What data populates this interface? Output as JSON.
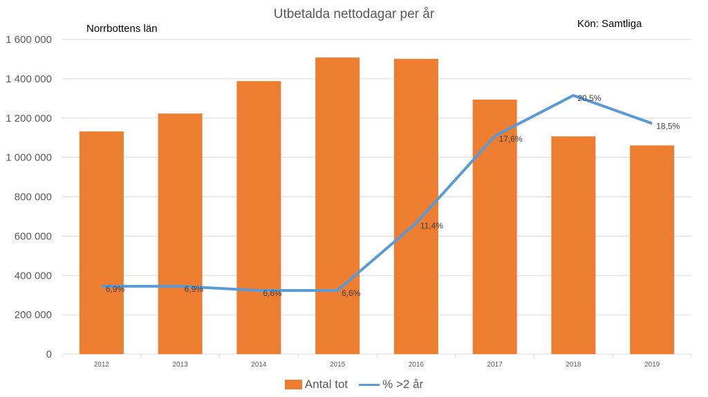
{
  "chart_data": {
    "type": "bar",
    "title": "Utbetalda nettodagar per år",
    "annotations": {
      "region": "Norrbottens län",
      "gender": "Kön: Samtliga"
    },
    "categories": [
      "2012",
      "2013",
      "2014",
      "2015",
      "2016",
      "2017",
      "2018",
      "2019"
    ],
    "series": [
      {
        "name": "Antal tot",
        "type": "bar",
        "color": "#ED7D31",
        "values": [
          1132000,
          1223000,
          1388000,
          1508000,
          1501000,
          1294000,
          1107000,
          1061000
        ]
      },
      {
        "name": "% >2 år",
        "type": "line",
        "axis": "secondary",
        "color": "#5B9BD5",
        "values": [
          6.9,
          6.9,
          6.6,
          6.6,
          11.4,
          17.6,
          20.5,
          18.5
        ],
        "labels": [
          "6,9%",
          "6,9%",
          "6,6%",
          "6,6%",
          "11,4%",
          "17,6%",
          "20,5%",
          "18,5%"
        ]
      }
    ],
    "ylim": [
      0,
      1600000
    ],
    "yticks": [
      0,
      200000,
      400000,
      600000,
      800000,
      1000000,
      1200000,
      1400000,
      1600000
    ],
    "ytick_labels": [
      "0",
      "200 000",
      "400 000",
      "600 000",
      "800 000",
      "1 000 000",
      "1 200 000",
      "1 400 000",
      "1 600 000"
    ],
    "xlabel": "",
    "ylabel": "",
    "grid": true,
    "legend": "bottom-center"
  }
}
